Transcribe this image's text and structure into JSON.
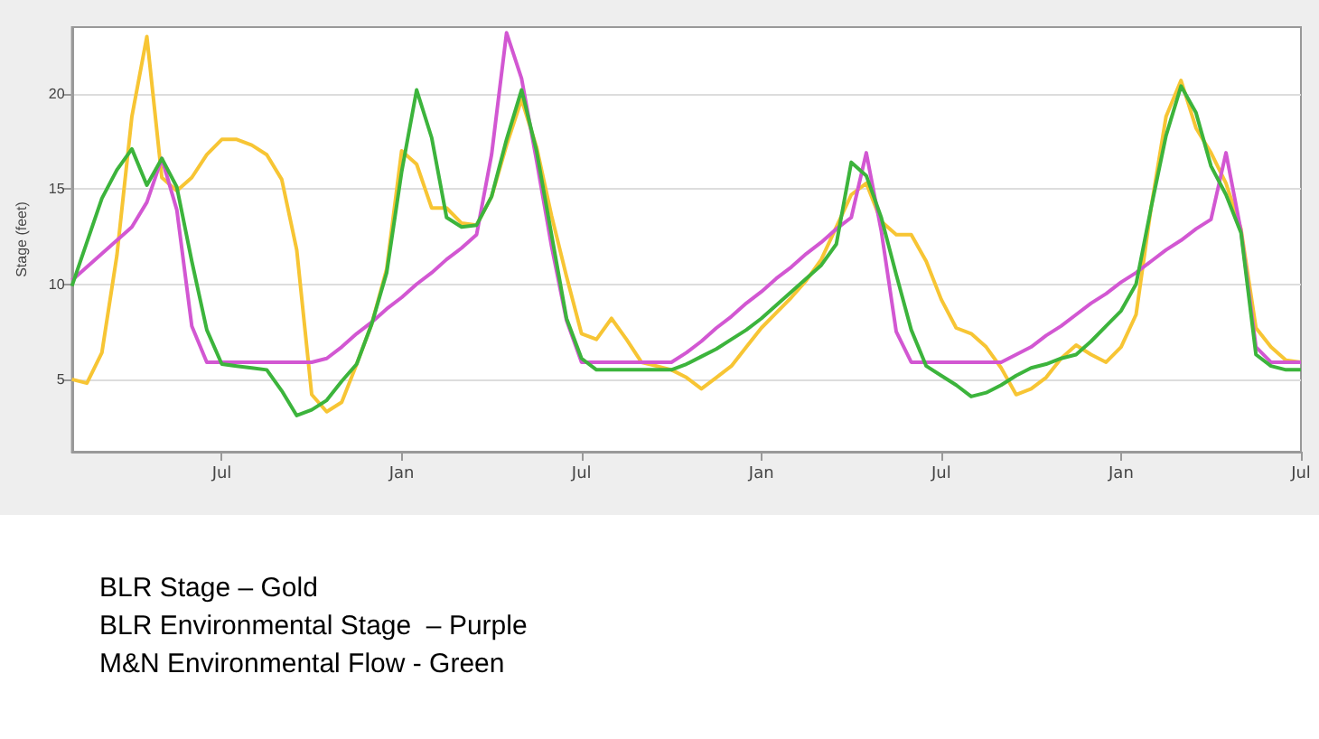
{
  "chart_data": {
    "type": "line",
    "ylabel": "Stage (feet)",
    "ylim": [
      1.2,
      23.5
    ],
    "yticks": [
      5,
      10,
      15,
      20
    ],
    "categories": [
      null,
      null,
      null,
      null,
      null,
      null,
      null,
      null,
      null,
      null,
      "Jul",
      null,
      null,
      null,
      null,
      null,
      null,
      null,
      null,
      null,
      null,
      null,
      "Jan",
      null,
      null,
      null,
      null,
      null,
      null,
      null,
      null,
      null,
      null,
      null,
      "Jul",
      null,
      null,
      null,
      null,
      null,
      null,
      null,
      null,
      null,
      null,
      null,
      "Jan",
      null,
      null,
      null,
      null,
      null,
      null,
      null,
      null,
      null,
      null,
      null,
      "Jul",
      null,
      null,
      null,
      null,
      null,
      null,
      null,
      null,
      null,
      null,
      null,
      "Jan",
      null,
      null,
      null,
      null,
      null,
      null,
      null,
      null,
      null,
      null,
      null,
      "Jul"
    ],
    "grid": "y",
    "marker": "none",
    "series": [
      {
        "color": "#f7c534",
        "values": [
          5.0,
          4.8,
          6.4,
          11.5,
          18.8,
          23.0,
          15.6,
          14.9,
          15.6,
          16.8,
          17.6,
          17.6,
          17.3,
          16.8,
          15.5,
          11.8,
          4.2,
          3.3,
          3.8,
          5.8,
          7.9,
          10.8,
          17.0,
          16.3,
          14.0,
          14.0,
          13.2,
          13.1,
          14.6,
          17.3,
          19.7,
          17.2,
          13.6,
          10.4,
          7.4,
          7.1,
          8.2,
          7.1,
          5.9,
          5.7,
          5.5,
          5.1,
          4.5,
          5.1,
          5.7,
          6.7,
          7.7,
          8.5,
          9.3,
          10.2,
          11.3,
          13.0,
          14.7,
          15.3,
          13.3,
          12.6,
          12.6,
          11.2,
          9.2,
          7.7,
          7.4,
          6.7,
          5.6,
          4.2,
          4.5,
          5.1,
          6.1,
          6.8,
          6.3,
          5.9,
          6.7,
          8.4,
          14.0,
          18.8,
          20.7,
          18.2,
          16.9,
          15.3,
          12.9,
          7.7,
          6.7,
          6.0,
          5.9
        ]
      },
      {
        "color": "#d257d2",
        "values": [
          10.2,
          10.9,
          11.6,
          12.3,
          13.0,
          14.3,
          16.6,
          13.9,
          7.8,
          5.9,
          5.9,
          5.9,
          5.9,
          5.9,
          5.9,
          5.9,
          5.9,
          6.1,
          6.7,
          7.4,
          8.0,
          8.7,
          9.3,
          10.0,
          10.6,
          11.3,
          11.9,
          12.6,
          16.8,
          23.2,
          20.8,
          16.5,
          12.0,
          8.1,
          5.9,
          5.9,
          5.9,
          5.9,
          5.9,
          5.9,
          5.9,
          6.4,
          7.0,
          7.7,
          8.3,
          9.0,
          9.6,
          10.3,
          10.9,
          11.6,
          12.2,
          12.9,
          13.5,
          16.9,
          12.8,
          7.5,
          5.9,
          5.9,
          5.9,
          5.9,
          5.9,
          5.9,
          5.9,
          6.3,
          6.7,
          7.3,
          7.8,
          8.4,
          9.0,
          9.5,
          10.1,
          10.6,
          11.2,
          11.8,
          12.3,
          12.9,
          13.4,
          16.9,
          12.8,
          6.7,
          5.9,
          5.9,
          5.9
        ]
      },
      {
        "color": "#3cb43c",
        "values": [
          9.9,
          12.2,
          14.5,
          16.0,
          17.1,
          15.2,
          16.6,
          15.1,
          11.2,
          7.6,
          5.8,
          5.7,
          5.6,
          5.5,
          4.4,
          3.1,
          3.4,
          3.9,
          4.9,
          5.8,
          7.9,
          10.6,
          15.9,
          20.2,
          17.7,
          13.5,
          13.0,
          13.1,
          14.6,
          17.6,
          20.2,
          17.0,
          12.6,
          8.2,
          6.1,
          5.5,
          5.5,
          5.5,
          5.5,
          5.5,
          5.5,
          5.8,
          6.2,
          6.6,
          7.1,
          7.6,
          8.2,
          8.9,
          9.6,
          10.3,
          11.0,
          12.1,
          16.4,
          15.7,
          13.5,
          10.5,
          7.6,
          5.7,
          5.2,
          4.7,
          4.1,
          4.3,
          4.7,
          5.2,
          5.6,
          5.8,
          6.1,
          6.3,
          7.0,
          7.8,
          8.6,
          10.0,
          14.0,
          17.8,
          20.4,
          19.0,
          16.2,
          14.7,
          12.7,
          6.3,
          5.7,
          5.5,
          5.5
        ]
      }
    ],
    "annotations": [
      "BLR Stage – Gold",
      "BLR Environmental Stage  – Purple",
      "M&N Environmental Flow - Green"
    ]
  }
}
